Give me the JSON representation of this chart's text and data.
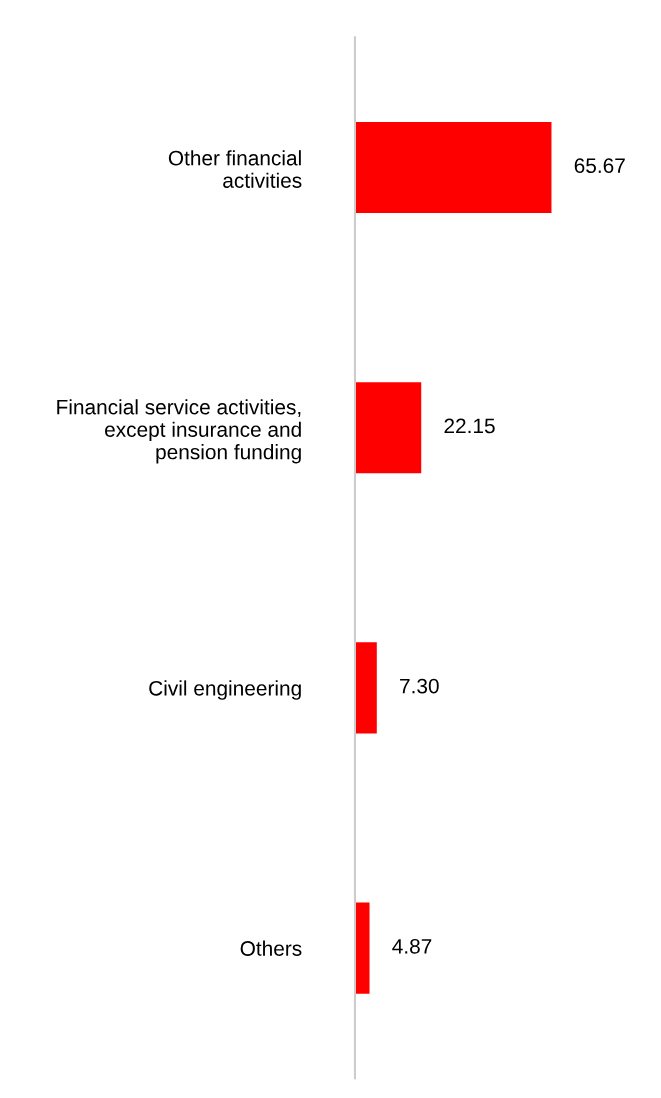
{
  "chart_data": {
    "type": "bar",
    "orientation": "horizontal",
    "categories": [
      "Other financial\nactivities",
      "Financial service activities,\nexcept insurance and\npension funding",
      "Civil engineering",
      "Others"
    ],
    "values": [
      65.67,
      22.15,
      7.3,
      4.87
    ],
    "value_labels": [
      "65.67",
      "22.15",
      "7.30",
      "4.87"
    ],
    "color": "#ff0000",
    "grid": false,
    "legend": false
  }
}
